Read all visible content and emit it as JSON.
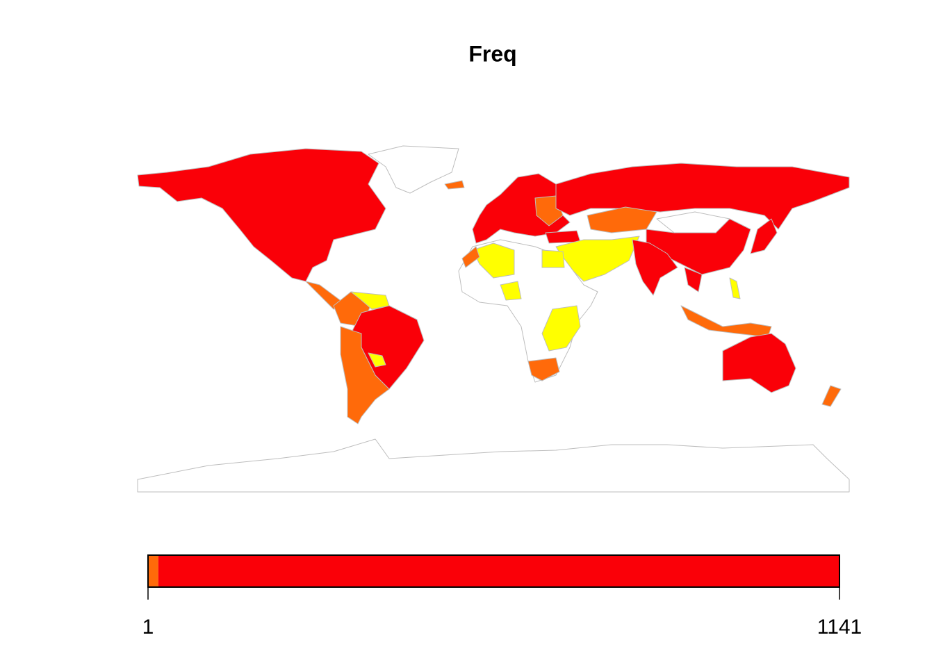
{
  "title": "Freq",
  "legend": {
    "range": [
      1,
      1141
    ],
    "ticks": [
      1,
      1141
    ],
    "classes": [
      {
        "color": "#ffff00",
        "from": 1,
        "to": 2
      },
      {
        "color": "#ff6a0a",
        "from": 2,
        "to": 18
      },
      {
        "color": "#fa0008",
        "from": 18,
        "to": 1141
      }
    ]
  }
}
